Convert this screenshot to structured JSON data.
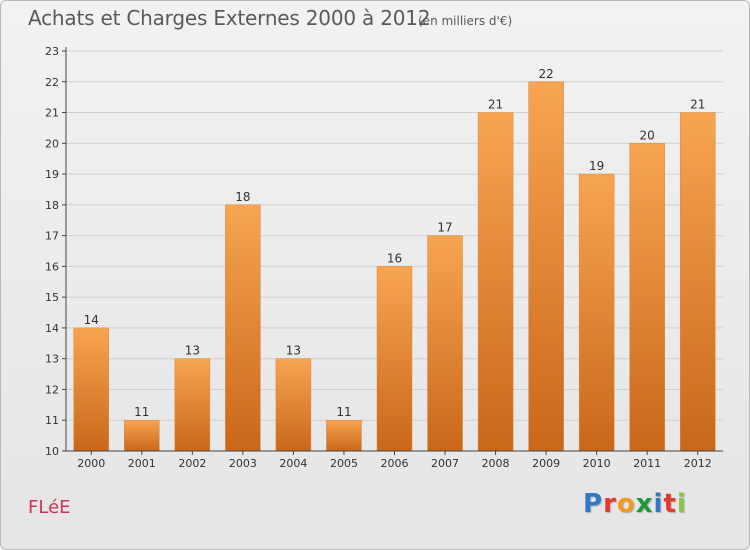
{
  "header": {
    "title": "Achats et Charges Externes 2000 à 2012",
    "subtitle": "(en milliers d'€)"
  },
  "footer": {
    "commune": "FLéE",
    "brand": "Proxiti",
    "brand_colors": [
      "#2f78c8",
      "#e23a2c",
      "#f39a1e",
      "#1c9a3a",
      "#2f78c8",
      "#e23a2c",
      "#8bc540"
    ]
  },
  "chart_data": {
    "type": "bar",
    "categories": [
      "2000",
      "2001",
      "2002",
      "2003",
      "2004",
      "2005",
      "2006",
      "2007",
      "2008",
      "2009",
      "2010",
      "2011",
      "2012"
    ],
    "values": [
      14,
      11,
      13,
      18,
      13,
      11,
      16,
      17,
      21,
      22,
      19,
      20,
      21
    ],
    "ylim": [
      10,
      23
    ],
    "yticks": [
      "10",
      "11",
      "12",
      "13",
      "14",
      "15",
      "16",
      "17",
      "18",
      "19",
      "20",
      "21",
      "22",
      "23"
    ],
    "grid": true,
    "colors": {
      "bar_top": "#f7a552",
      "bar_bottom": "#c9671a",
      "grid": "#d0d0d0",
      "axis": "#444444"
    }
  }
}
